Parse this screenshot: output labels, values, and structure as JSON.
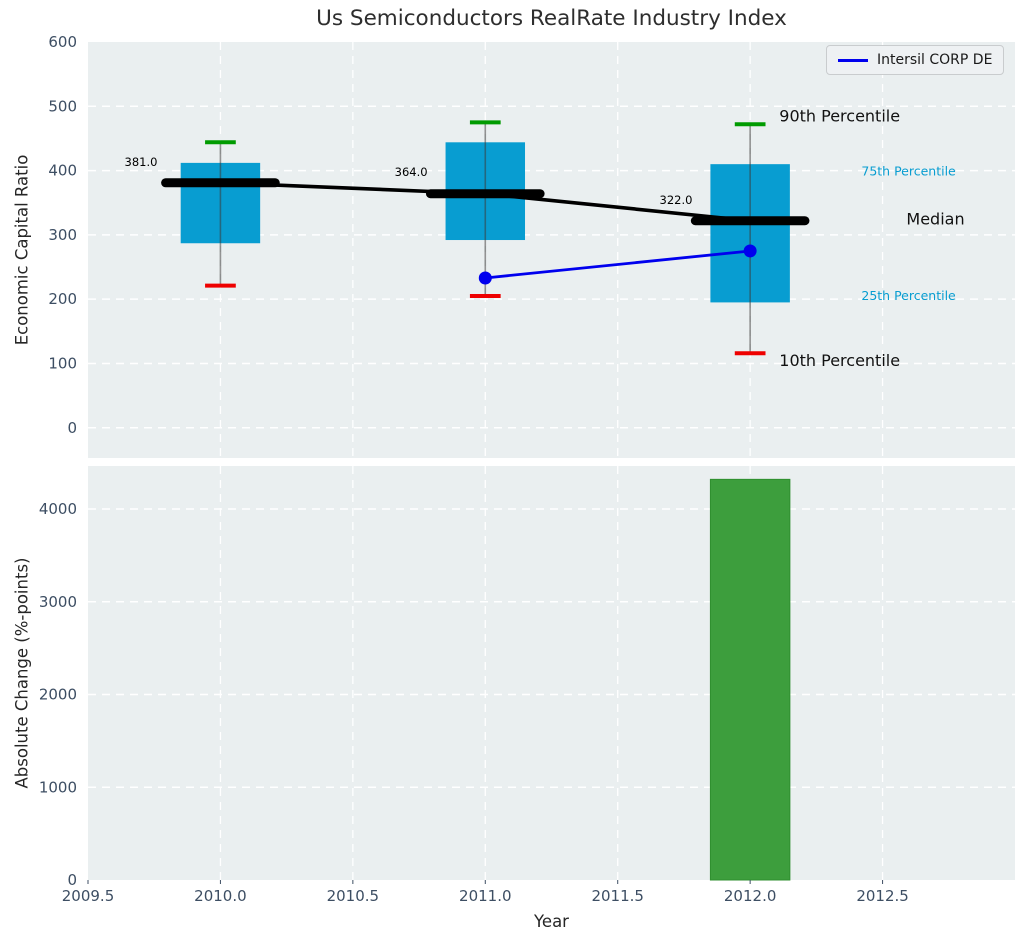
{
  "figure": {
    "title": "Us Semiconductors RealRate Industry Index",
    "background": "#ffffff",
    "axes_background": "#eaeff0",
    "grid_color": "#ffffff",
    "tick_label_color": "#3d4e63"
  },
  "legend": {
    "label": "Intersil CORP DE",
    "color": "#0000ee"
  },
  "chart_data": [
    {
      "type": "boxplot",
      "title": "Us Semiconductors RealRate Industry Index",
      "ylabel": "Economic Capital Ratio",
      "xlim": [
        2009.5,
        2013.0
      ],
      "ylim": [
        -47,
        600
      ],
      "yticks": [
        0,
        100,
        200,
        300,
        400,
        500,
        600
      ],
      "xticks": [
        2009.5,
        2010.0,
        2010.5,
        2011.0,
        2011.5,
        2012.0,
        2012.5
      ],
      "grid": true,
      "legend_position": "upper right",
      "box_width": 0.3,
      "cap_half_width": 0.058,
      "median_half_width": 0.207,
      "box_color": "#089dd1",
      "whisker_color": "#3c3c3c",
      "cap_top_color": "#009b00",
      "cap_bottom_color": "#ee0000",
      "median_color": "#000000",
      "boxes": [
        {
          "year": 2010,
          "p10": 221,
          "p25": 287,
          "median": 381,
          "p75": 412,
          "p90": 444
        },
        {
          "year": 2011,
          "p10": 205,
          "p25": 292,
          "median": 364,
          "p75": 444,
          "p90": 475
        },
        {
          "year": 2012,
          "p10": 116,
          "p25": 195,
          "median": 322,
          "p75": 410,
          "p90": 472
        }
      ],
      "series": [
        {
          "name": "Intersil CORP DE",
          "color": "#0000ee",
          "x": [
            2011,
            2012
          ],
          "y": [
            233,
            275
          ]
        }
      ],
      "annotations": [
        {
          "text": "381.0",
          "x": 2009.7,
          "y": 413,
          "size": 11.5,
          "color": "#000000",
          "anchor": "middle"
        },
        {
          "text": "364.0",
          "x": 2010.72,
          "y": 398,
          "size": 11.5,
          "color": "#000000",
          "anchor": "middle"
        },
        {
          "text": "322.0",
          "x": 2011.72,
          "y": 354,
          "size": 11.5,
          "color": "#000000",
          "anchor": "middle"
        },
        {
          "text": "90th Percentile",
          "x": 2012.11,
          "y": 485,
          "size": 16,
          "color": "#111111",
          "anchor": "start"
        },
        {
          "text": "75th Percentile",
          "x": 2012.42,
          "y": 399,
          "size": 12.5,
          "color": "#089dd1",
          "anchor": "start"
        },
        {
          "text": "Median",
          "x": 2012.59,
          "y": 325,
          "size": 16,
          "color": "#111111",
          "anchor": "start"
        },
        {
          "text": "25th Percentile",
          "x": 2012.42,
          "y": 206,
          "size": 12.5,
          "color": "#089dd1",
          "anchor": "start"
        },
        {
          "text": "10th Percentile",
          "x": 2012.11,
          "y": 105,
          "size": 16,
          "color": "#111111",
          "anchor": "start"
        }
      ]
    },
    {
      "type": "bar",
      "ylabel": "Absolute Change (%-points)",
      "xlabel": "Year",
      "xlim": [
        2009.5,
        2013.0
      ],
      "ylim": [
        0,
        4464
      ],
      "yticks": [
        0,
        1000,
        2000,
        3000,
        4000
      ],
      "xticks": [
        2009.5,
        2010.0,
        2010.5,
        2011.0,
        2011.5,
        2012.0,
        2012.5
      ],
      "xtick_labels": [
        "2009.5",
        "2010.0",
        "2010.5",
        "2011.0",
        "2011.5",
        "2012.0",
        "2012.5"
      ],
      "grid": true,
      "bar_width": 0.3,
      "bars": [
        {
          "x": 2012,
          "value": 4320,
          "color": "#3d9e3d",
          "edge_color": "#2f8f2f"
        }
      ]
    }
  ]
}
